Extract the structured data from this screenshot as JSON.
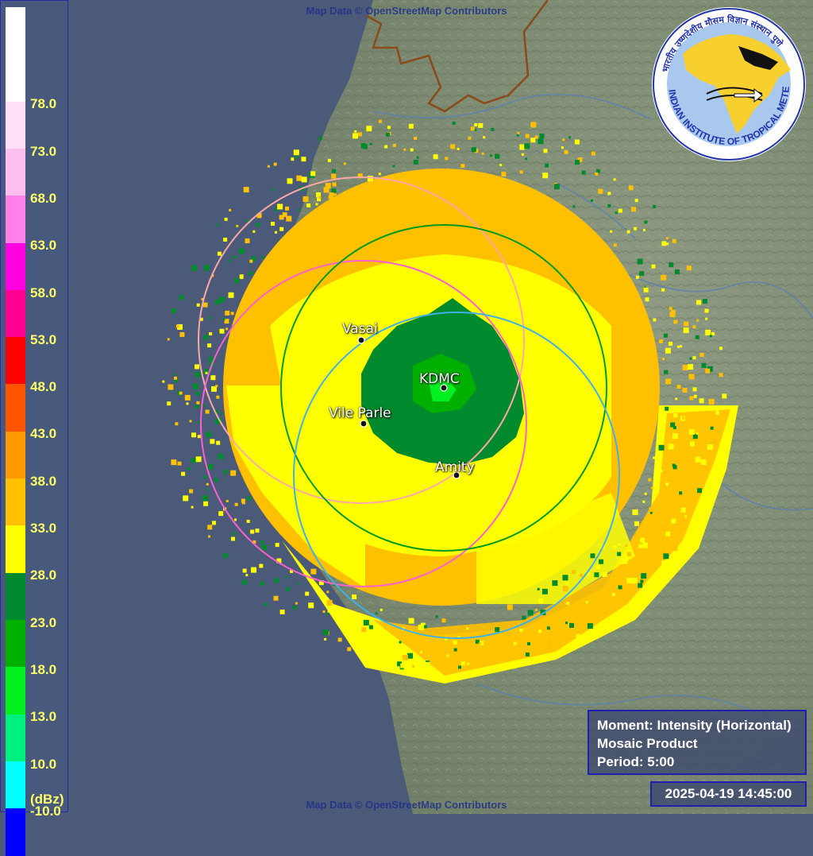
{
  "attribution": {
    "top": "Map Data © OpenStreetMap Contributors",
    "bottom": "Map Data © OpenStreetMap Contributors"
  },
  "legend": {
    "unit": "(dBz)",
    "entries": [
      {
        "label": "",
        "color": "#ffffff"
      },
      {
        "label": "78.0",
        "color": "#ffffff"
      },
      {
        "label": "73.0",
        "color": "#ffe0f6"
      },
      {
        "label": "68.0",
        "color": "#ffc0f0"
      },
      {
        "label": "63.0",
        "color": "#ff80e8"
      },
      {
        "label": "58.0",
        "color": "#ff00e0"
      },
      {
        "label": "53.0",
        "color": "#ff0090"
      },
      {
        "label": "48.0",
        "color": "#ff0000"
      },
      {
        "label": "43.0",
        "color": "#ff5500"
      },
      {
        "label": "38.0",
        "color": "#ff9900"
      },
      {
        "label": "33.0",
        "color": "#ffc000"
      },
      {
        "label": "28.0",
        "color": "#ffff00"
      },
      {
        "label": "23.0",
        "color": "#008a2e"
      },
      {
        "label": "18.0",
        "color": "#00b000"
      },
      {
        "label": "13.0",
        "color": "#00f020"
      },
      {
        "label": "10.0",
        "color": "#00f080"
      },
      {
        "label": "-10.0",
        "color": "#00ffff"
      },
      {
        "label": "",
        "color": "#0000ff"
      }
    ]
  },
  "stations": [
    {
      "name": "Vasai"
    },
    {
      "name": "KDMC"
    },
    {
      "name": "Vile Parle"
    },
    {
      "name": "Amity"
    }
  ],
  "range_ring_colors": {
    "vasai": "#ffa8a8",
    "vile_parle": "#ff60d0",
    "kdmc": "#009a1a",
    "amity": "#40b0e8"
  },
  "info": {
    "moment": "Moment: Intensity (Horizontal)",
    "product": "Mosaic Product",
    "period": "Period: 5:00"
  },
  "timestamp": "2025-04-19 14:45:00",
  "logo": {
    "text": "INDIAN INSTITUTE OF TROPICAL METEOROLOGY PUNE",
    "hindi_text": "भारतीय उष्णदेशीय मौसम विज्ञान संस्थान पुणे"
  }
}
